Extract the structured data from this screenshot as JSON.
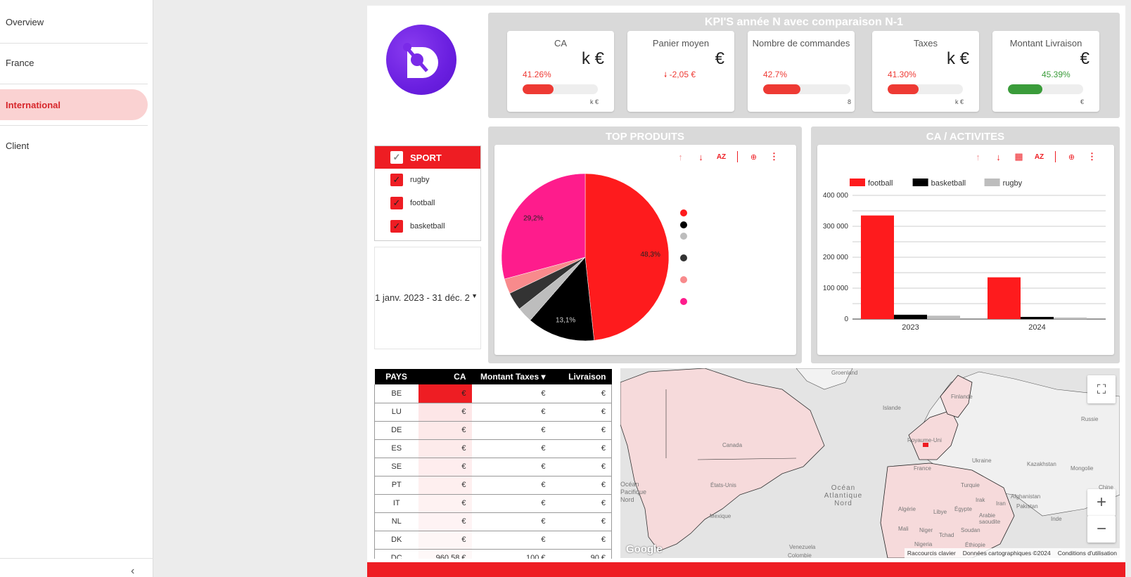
{
  "sidebar": {
    "items": [
      {
        "label": "Overview"
      },
      {
        "label": "France"
      },
      {
        "label": "International"
      },
      {
        "label": "Client"
      }
    ],
    "collapse_icon": "‹"
  },
  "kpi": {
    "title": "KPI'S année N avec comparaison N-1",
    "cards": [
      {
        "label": "CA",
        "value": "k €",
        "pct": "41.26%",
        "progress": 41.26,
        "target": "k €",
        "color": "#ee3a34"
      },
      {
        "label": "Panier moyen",
        "value": "€",
        "delta": "-2,05 €",
        "delta_icon": "arrow-down"
      },
      {
        "label": "Nombre de commandes",
        "value": "",
        "pct": "42.7%",
        "progress": 42.7,
        "target": "8",
        "color": "#ee3a34"
      },
      {
        "label": "Taxes",
        "value": "k €",
        "pct": "41.30%",
        "progress": 41.3,
        "target": "k €",
        "color": "#ee3a34"
      },
      {
        "label": "Montant Livraison",
        "value": "€",
        "pct": "45.39%",
        "progress": 45.39,
        "target": "€",
        "color": "#3a9c3a"
      }
    ]
  },
  "filters": {
    "sport": {
      "header": "SPORT",
      "items": [
        "rugby",
        "football",
        "basketball"
      ]
    },
    "date_range": "1 janv. 2023 - 31 déc. 2"
  },
  "top_produits": {
    "title": "TOP PRODUITS"
  },
  "ca_activites": {
    "title": "CA / ACTIVITES"
  },
  "table": {
    "headers": [
      "PAYS",
      "CA",
      "Montant Taxes",
      "Livraison"
    ],
    "sort_indicator": "▾",
    "rows": [
      {
        "pays": "BE",
        "ca": "€",
        "tax": "€",
        "liv": "€"
      },
      {
        "pays": "LU",
        "ca": "€",
        "tax": "€",
        "liv": "€"
      },
      {
        "pays": "DE",
        "ca": "€",
        "tax": "€",
        "liv": "€"
      },
      {
        "pays": "ES",
        "ca": "€",
        "tax": "€",
        "liv": "€"
      },
      {
        "pays": "SE",
        "ca": "€",
        "tax": "€",
        "liv": "€"
      },
      {
        "pays": "PT",
        "ca": "€",
        "tax": "€",
        "liv": "€"
      },
      {
        "pays": "IT",
        "ca": "€",
        "tax": "€",
        "liv": "€"
      },
      {
        "pays": "NL",
        "ca": "€",
        "tax": "€",
        "liv": "€"
      },
      {
        "pays": "DK",
        "ca": "€",
        "tax": "€",
        "liv": "€"
      },
      {
        "pays": "DC",
        "ca": "960,58 €",
        "tax": "100 €",
        "liv": "90 €"
      }
    ]
  },
  "map": {
    "labels": [
      "Groenland",
      "Islande",
      "Finlande",
      "Russie",
      "Canada",
      "Royaume-Uni",
      "Ukraine",
      "Kazakhstan",
      "Mongolie",
      "France",
      "Chine",
      "Turquie",
      "États-Unis",
      "Océan Atlantique Nord",
      "Océan Pacifique Nord",
      "Irak",
      "Iran",
      "Afghanistan",
      "Algérie",
      "Libye",
      "Égypte",
      "Pakistan",
      "Mexique",
      "Arabie saoudite",
      "Inde",
      "Mali",
      "Niger",
      "Tchad",
      "Soudan",
      "Nigeria",
      "Éthiopie",
      "Venezuela",
      "Colombie"
    ],
    "attribution": [
      "Raccourcis clavier",
      "Données cartographiques ©2024",
      "Conditions d'utilisation"
    ],
    "logo": "Google",
    "zoom_in": "+",
    "zoom_out": "−"
  },
  "chart_data": [
    {
      "type": "pie",
      "title": "TOP PRODUITS",
      "slices": [
        {
          "label": "",
          "value": 48.3,
          "color": "#fe1b1d",
          "data_label": "48,3%"
        },
        {
          "label": "",
          "value": 13.1,
          "color": "#000000",
          "data_label": "13,1%"
        },
        {
          "label": "",
          "value": 3.0,
          "color": "#bdbdbd"
        },
        {
          "label": "",
          "value": 3.5,
          "color": "#333333"
        },
        {
          "label": "",
          "value": 2.9,
          "color": "#f88a8c"
        },
        {
          "label": "",
          "value": 29.2,
          "color": "#fe1c8c",
          "data_label": "29,2%"
        }
      ]
    },
    {
      "type": "bar",
      "title": "CA / ACTIVITES",
      "categories": [
        "2023",
        "2024"
      ],
      "series": [
        {
          "name": "football",
          "values": [
            335000,
            135000
          ],
          "color": "#fe1b1d"
        },
        {
          "name": "basketball",
          "values": [
            14000,
            7000
          ],
          "color": "#000000"
        },
        {
          "name": "rugby",
          "values": [
            11000,
            5000
          ],
          "color": "#bdbdbd"
        }
      ],
      "ylim": [
        0,
        400000
      ],
      "yticks": [
        "0",
        "100 000",
        "200 000",
        "300 000",
        "400 000"
      ],
      "legend": "top-left",
      "grid": true
    }
  ]
}
